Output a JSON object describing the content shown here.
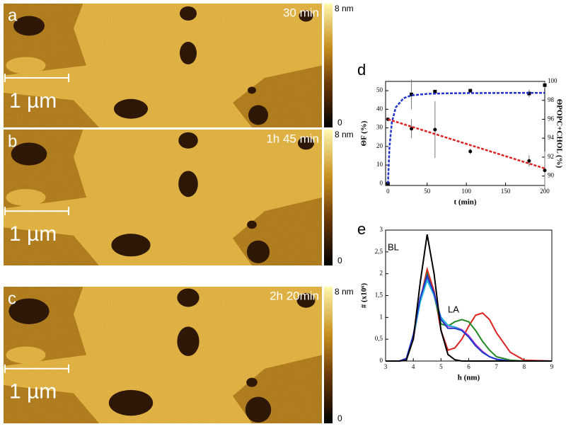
{
  "panels": [
    {
      "label": "a",
      "time": "30 min",
      "colorbar_max": "8 nm",
      "colorbar_min": 0,
      "scalebar": "1 µm"
    },
    {
      "label": "b",
      "time": "1h 45 min",
      "colorbar_max": "8 nm",
      "colorbar_min": 0,
      "scalebar": "1 µm"
    },
    {
      "label": "c",
      "time": "2h 20min",
      "colorbar_max": "8 nm",
      "colorbar_min": 0,
      "scalebar": "1 µm"
    }
  ],
  "chart_data": [
    {
      "type": "scatter",
      "panel_label": "d",
      "xlabel": "t (min)",
      "ylabel": "ΘF (%)",
      "y2label": "ΘPOPC+CHOL (%)",
      "xlim": [
        -3,
        200
      ],
      "xticks": [
        0,
        50,
        100,
        150,
        200
      ],
      "ylim": [
        -1,
        55
      ],
      "yticks": [
        0,
        10,
        20,
        30,
        40,
        50
      ],
      "y2lim": [
        89,
        100
      ],
      "y2ticks": [
        90,
        92,
        94,
        96,
        98,
        100
      ],
      "series": [
        {
          "color": "#000000",
          "marker": "square",
          "x": [
            0,
            30,
            60,
            105,
            180,
            200
          ],
          "values": [
            0,
            48,
            49.5,
            50,
            48.5,
            53
          ],
          "errors": [
            0,
            8,
            1,
            1,
            2,
            1.5
          ]
        },
        {
          "color": "#000000",
          "marker": "circle",
          "axis": "y2",
          "x": [
            0,
            30,
            60,
            105,
            180,
            200
          ],
          "values": [
            96,
            95,
            94.9,
            92.6,
            91.6,
            90.6
          ],
          "errors": [
            0,
            1,
            3,
            0.3,
            0.6,
            2
          ]
        },
        {
          "color": "#2233cc",
          "style": "dashed",
          "x": [
            0,
            2,
            5,
            10,
            20,
            30,
            50,
            75,
            100,
            150,
            200
          ],
          "values": [
            0,
            20,
            33,
            41,
            46,
            47.5,
            48.3,
            48.6,
            48.7,
            48.8,
            48.8
          ]
        },
        {
          "color": "#dd2222",
          "style": "dashed",
          "axis": "y2",
          "x": [
            0,
            200
          ],
          "values": [
            96,
            90.8
          ]
        }
      ]
    },
    {
      "type": "line",
      "panel_label": "e",
      "xlabel": "h (nm)",
      "ylabel": "# (x10⁶)",
      "annotations": [
        "BL",
        "LA"
      ],
      "xlim": [
        3,
        9
      ],
      "xticks": [
        3,
        4,
        5,
        6,
        7,
        8,
        9
      ],
      "ylim": [
        0,
        3
      ],
      "yticks": [
        0,
        {
          "value": 0.5,
          "label": "0,5"
        },
        1,
        {
          "value": 1.5,
          "label": "1,5"
        },
        2,
        {
          "value": 2.5,
          "label": "2,5"
        },
        3
      ],
      "x": [
        3,
        3.5,
        3.75,
        4,
        4.25,
        4.5,
        4.75,
        5,
        5.25,
        5.5,
        5.75,
        6,
        6.25,
        6.5,
        6.75,
        7,
        7.5,
        8,
        9
      ],
      "series": [
        {
          "color": "#dd2222",
          "values": [
            0,
            0,
            0.05,
            0.5,
            1.4,
            2.1,
            1.6,
            0.7,
            0.25,
            0.3,
            0.5,
            0.8,
            1.05,
            1.1,
            0.95,
            0.65,
            0.2,
            0.02,
            0
          ]
        },
        {
          "color": "#228822",
          "values": [
            0,
            0,
            0.05,
            0.55,
            1.4,
            2.0,
            1.5,
            0.85,
            0.8,
            0.9,
            0.95,
            0.9,
            0.7,
            0.45,
            0.25,
            0.1,
            0.02,
            0,
            0
          ]
        },
        {
          "color": "#cc33cc",
          "values": [
            0,
            0,
            0.05,
            0.55,
            1.4,
            1.9,
            1.5,
            1.0,
            0.8,
            0.78,
            0.72,
            0.58,
            0.38,
            0.22,
            0.1,
            0.04,
            0,
            0,
            0
          ]
        },
        {
          "color": "#22bbdd",
          "values": [
            0,
            0,
            0.05,
            0.55,
            1.35,
            1.85,
            1.5,
            1.0,
            0.82,
            0.78,
            0.7,
            0.55,
            0.35,
            0.2,
            0.1,
            0.04,
            0,
            0,
            0
          ]
        },
        {
          "color": "#2233cc",
          "values": [
            0,
            0,
            0.06,
            0.6,
            1.45,
            1.95,
            1.55,
            0.95,
            0.75,
            0.75,
            0.7,
            0.55,
            0.35,
            0.2,
            0.1,
            0.04,
            0,
            0,
            0
          ]
        },
        {
          "color": "#000000",
          "values": [
            0,
            0,
            0.02,
            0.5,
            1.8,
            2.9,
            2.0,
            0.7,
            0.15,
            0.03,
            0,
            0,
            0,
            0,
            0,
            0,
            0,
            0,
            0
          ]
        }
      ]
    }
  ]
}
